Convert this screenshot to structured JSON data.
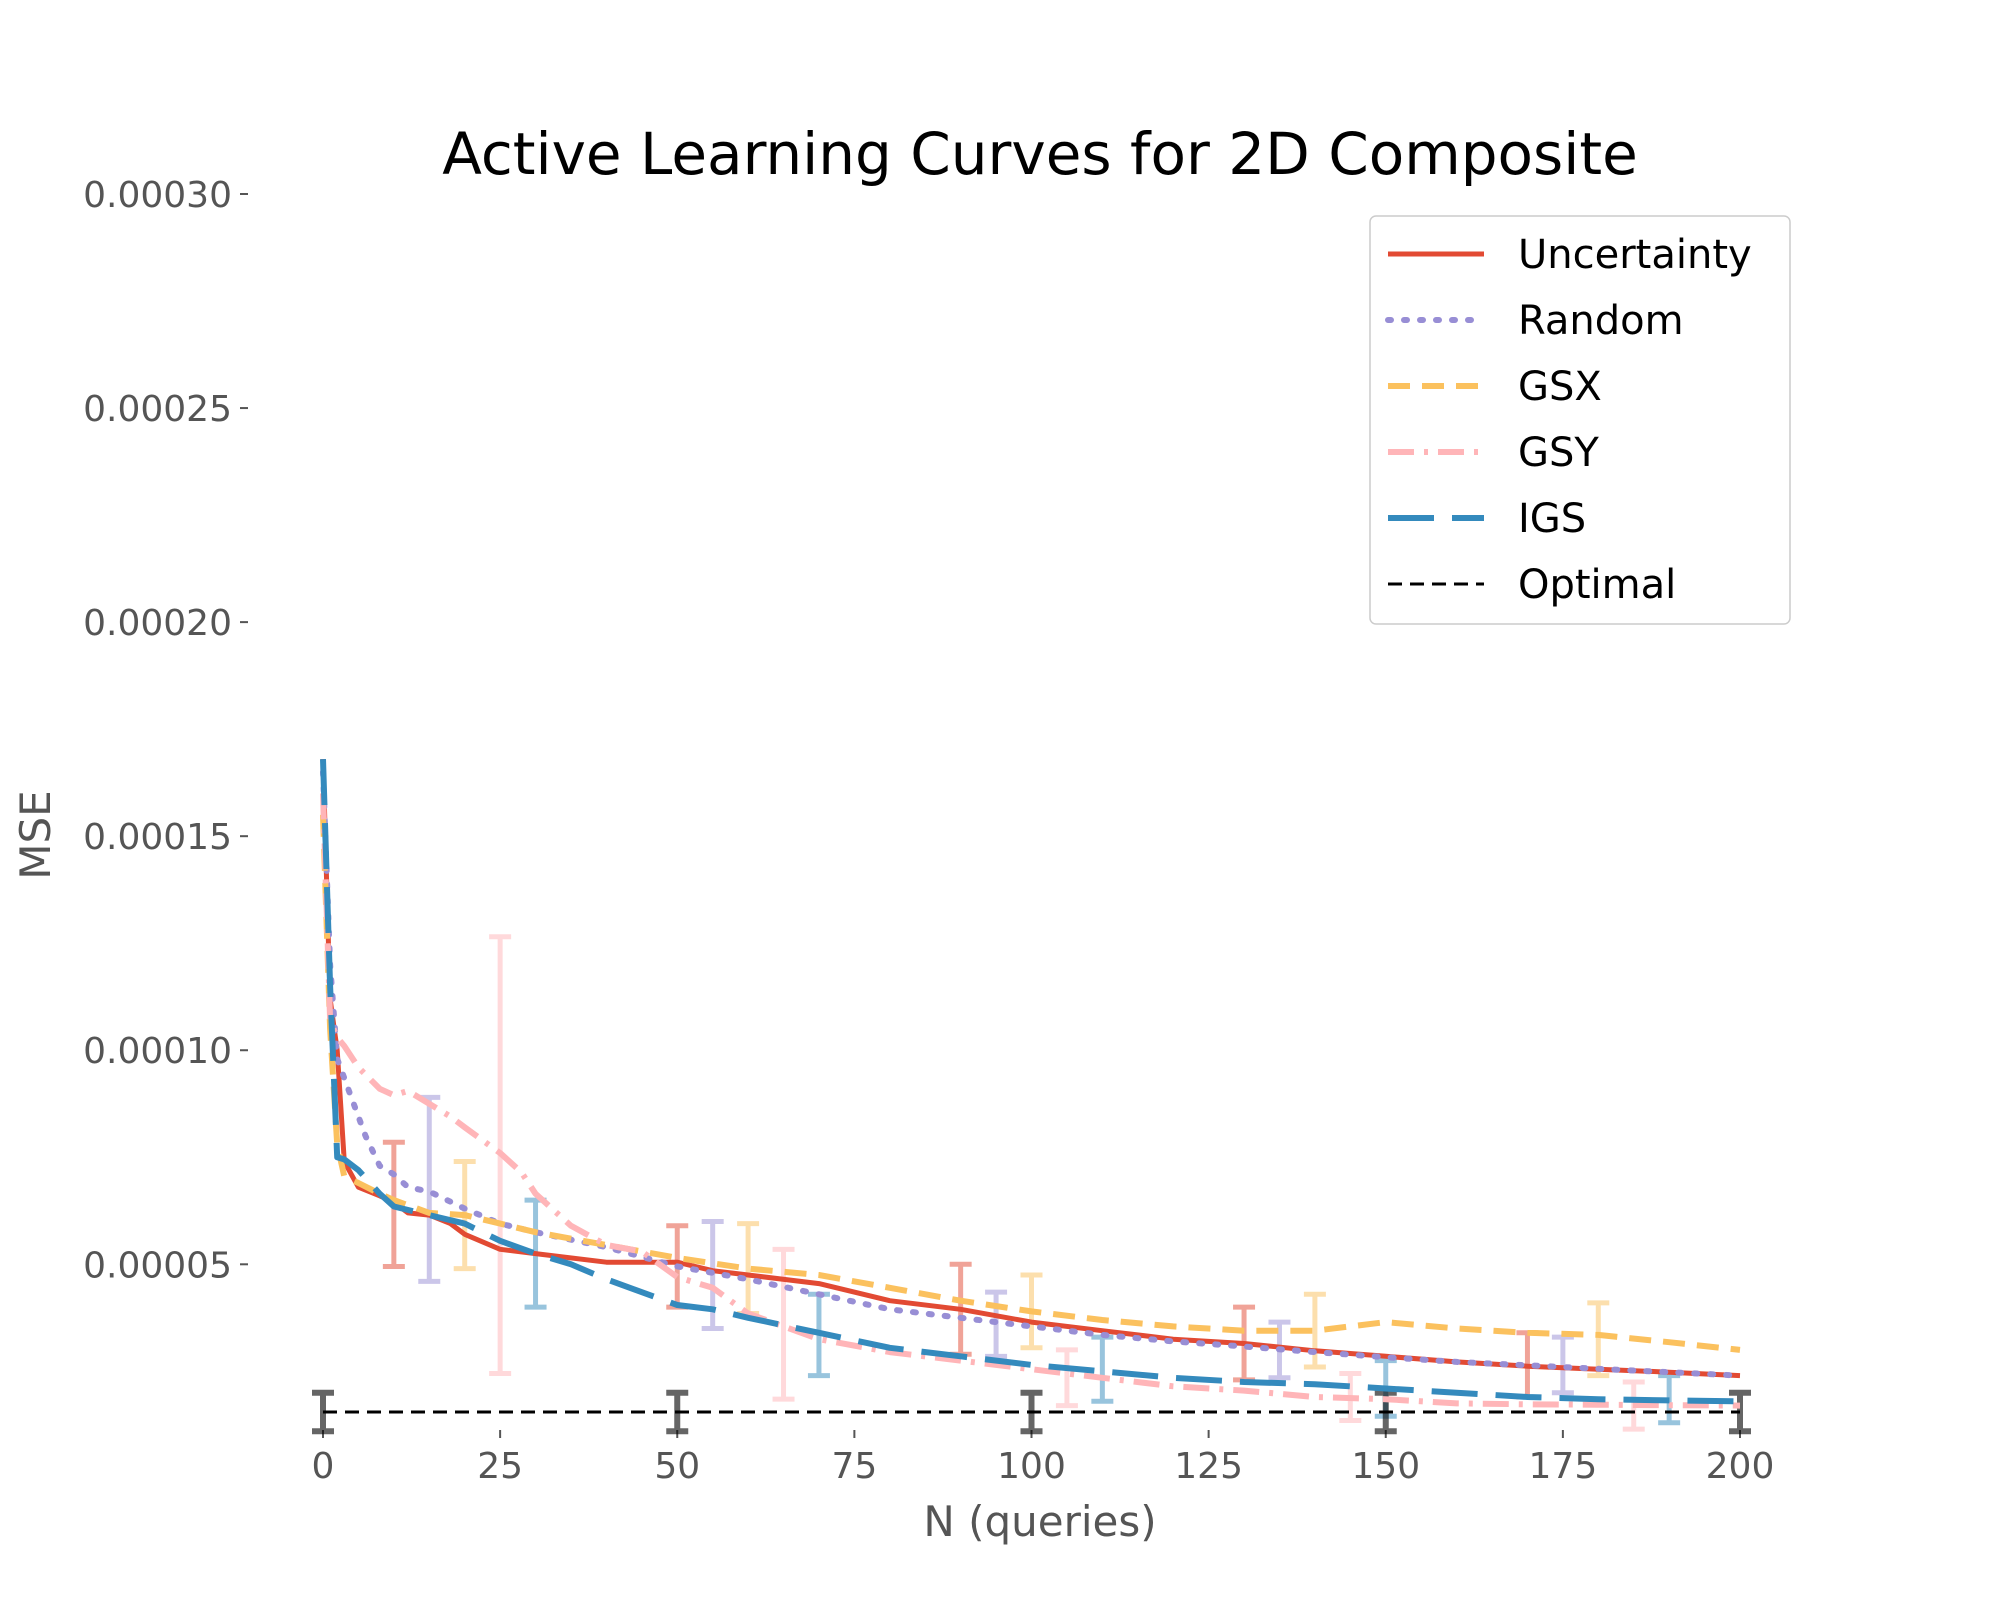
{
  "chart_data": {
    "type": "line",
    "title": "Active Learning Curves for 2D Composite",
    "xlabel": "N (queries)",
    "ylabel": "MSE",
    "xlim": [
      0,
      200
    ],
    "ylim": [
      1.2e-05,
      0.0003
    ],
    "xticks": [
      0,
      25,
      50,
      75,
      100,
      125,
      150,
      175,
      200
    ],
    "xtick_labels": [
      "0",
      "25",
      "50",
      "75",
      "100",
      "125",
      "150",
      "175",
      "200"
    ],
    "yticks": [
      5e-05,
      0.0001,
      0.00015,
      0.0002,
      0.00025,
      0.0003
    ],
    "ytick_labels": [
      "0.00005",
      "0.00010",
      "0.00015",
      "0.00020",
      "0.00025",
      "0.00030"
    ],
    "grid": false,
    "legend_position": "top-right",
    "series": [
      {
        "name": "Uncertainty",
        "color": "#E24A33",
        "dash": "solid",
        "x": [
          0,
          1,
          2,
          3,
          5,
          8,
          10,
          12,
          15,
          18,
          20,
          25,
          30,
          40,
          50,
          55,
          60,
          70,
          80,
          90,
          100,
          110,
          120,
          130,
          140,
          150,
          160,
          170,
          180,
          190,
          200
        ],
        "y": [
          0.000168,
          0.000112,
          0.0001,
          7.4e-05,
          6.8e-05,
          6.6e-05,
          6.45e-05,
          6.2e-05,
          6.15e-05,
          5.95e-05,
          5.7e-05,
          5.35e-05,
          5.25e-05,
          5.05e-05,
          5.05e-05,
          4.85e-05,
          4.75e-05,
          4.55e-05,
          4.15e-05,
          3.95e-05,
          3.65e-05,
          3.45e-05,
          3.25e-05,
          3.15e-05,
          2.98e-05,
          2.85e-05,
          2.72e-05,
          2.62e-05,
          2.55e-05,
          2.48e-05,
          2.4e-05
        ],
        "errorbars": [
          {
            "x": 10,
            "y": 6.4e-05,
            "err": 1.45e-05
          },
          {
            "x": 50,
            "y": 4.95e-05,
            "err": 9.5e-06
          },
          {
            "x": 90,
            "y": 3.95e-05,
            "err": 1.05e-05
          },
          {
            "x": 130,
            "y": 3.15e-05,
            "err": 8.5e-06
          },
          {
            "x": 170,
            "y": 2.65e-05,
            "err": 7.5e-06
          }
        ]
      },
      {
        "name": "Random",
        "color": "#988ED5",
        "dash": "dot",
        "x": [
          0,
          1,
          2,
          4,
          6,
          8,
          10,
          12,
          15,
          20,
          25,
          30,
          40,
          50,
          60,
          70,
          80,
          90,
          100,
          110,
          120,
          130,
          140,
          150,
          160,
          170,
          180,
          190,
          200
        ],
        "y": [
          0.000165,
          0.00012,
          9.8e-05,
          8.9e-05,
          8e-05,
          7.3e-05,
          7.1e-05,
          6.8e-05,
          6.7e-05,
          6.3e-05,
          5.95e-05,
          5.75e-05,
          5.4e-05,
          4.95e-05,
          4.65e-05,
          4.3e-05,
          3.95e-05,
          3.75e-05,
          3.55e-05,
          3.35e-05,
          3.2e-05,
          3.08e-05,
          2.95e-05,
          2.83e-05,
          2.72e-05,
          2.64e-05,
          2.56e-05,
          2.48e-05,
          2.4e-05
        ],
        "errorbars": [
          {
            "x": 15,
            "y": 6.75e-05,
            "err": 2.15e-05
          },
          {
            "x": 55,
            "y": 4.75e-05,
            "err": 1.25e-05
          },
          {
            "x": 95,
            "y": 3.6e-05,
            "err": 7.5e-06
          },
          {
            "x": 135,
            "y": 3e-05,
            "err": 6.5e-06
          },
          {
            "x": 175,
            "y": 2.65e-05,
            "err": 6.5e-06
          }
        ]
      },
      {
        "name": "GSX",
        "color": "#FBC15E",
        "dash": "dashed",
        "x": [
          0,
          1,
          2,
          3,
          5,
          8,
          10,
          15,
          20,
          25,
          30,
          40,
          50,
          60,
          70,
          80,
          90,
          100,
          110,
          120,
          130,
          140,
          150,
          160,
          170,
          180,
          190,
          200
        ],
        "y": [
          0.000155,
          0.000105,
          7.8e-05,
          7.05e-05,
          6.9e-05,
          6.65e-05,
          6.5e-05,
          6.2e-05,
          6.15e-05,
          5.95e-05,
          5.75e-05,
          5.45e-05,
          5.15e-05,
          4.9e-05,
          4.75e-05,
          4.45e-05,
          4.15e-05,
          3.9e-05,
          3.7e-05,
          3.55e-05,
          3.45e-05,
          3.45e-05,
          3.65e-05,
          3.5e-05,
          3.4e-05,
          3.35e-05,
          3.18e-05,
          3e-05
        ],
        "errorbars": [
          {
            "x": 20,
            "y": 6.15e-05,
            "err": 1.25e-05
          },
          {
            "x": 60,
            "y": 4.9e-05,
            "err": 1.05e-05
          },
          {
            "x": 100,
            "y": 3.9e-05,
            "err": 8.5e-06
          },
          {
            "x": 140,
            "y": 3.45e-05,
            "err": 8.5e-06
          },
          {
            "x": 180,
            "y": 3.25e-05,
            "err": 8.5e-06
          }
        ]
      },
      {
        "name": "GSY",
        "color": "#FFB5B8",
        "dash": "dashdot",
        "x": [
          0,
          1,
          2,
          3,
          5,
          8,
          10,
          12,
          15,
          18,
          20,
          25,
          28,
          30,
          35,
          40,
          45,
          50,
          55,
          60,
          65,
          70,
          80,
          90,
          100,
          110,
          120,
          130,
          140,
          150,
          160,
          170,
          180,
          190,
          200
        ],
        "y": [
          0.00016,
          0.000107,
          0.000103,
          0.000101,
          9.6e-05,
          9.1e-05,
          8.95e-05,
          9.05e-05,
          8.75e-05,
          8.45e-05,
          8.2e-05,
          7.6e-05,
          7.15e-05,
          6.65e-05,
          5.9e-05,
          5.45e-05,
          5.3e-05,
          4.7e-05,
          4.45e-05,
          3.85e-05,
          3.55e-05,
          3.25e-05,
          2.95e-05,
          2.75e-05,
          2.55e-05,
          2.35e-05,
          2.15e-05,
          2.05e-05,
          1.9e-05,
          1.85e-05,
          1.75e-05,
          1.73e-05,
          1.72e-05,
          1.71e-05,
          1.7e-05
        ],
        "errorbars": [
          {
            "x": 25,
            "y": 7.55e-05,
            "err": 5.1e-05
          },
          {
            "x": 65,
            "y": 3.6e-05,
            "err": 1.75e-05
          },
          {
            "x": 105,
            "y": 2.35e-05,
            "err": 6.5e-06
          },
          {
            "x": 145,
            "y": 1.9e-05,
            "err": 5.5e-06
          },
          {
            "x": 185,
            "y": 1.7e-05,
            "err": 5.5e-06
          }
        ]
      },
      {
        "name": "IGS",
        "color": "#348ABD",
        "dash": "longdash",
        "x": [
          0,
          1,
          2,
          3,
          5,
          8,
          10,
          15,
          20,
          25,
          30,
          35,
          40,
          50,
          55,
          60,
          70,
          80,
          90,
          100,
          110,
          120,
          130,
          140,
          150,
          160,
          170,
          180,
          190,
          200
        ],
        "y": [
          0.000168,
          0.000115,
          7.5e-05,
          7.45e-05,
          7.2e-05,
          6.65e-05,
          6.35e-05,
          6.15e-05,
          5.95e-05,
          5.55e-05,
          5.25e-05,
          5e-05,
          4.65e-05,
          4.05e-05,
          3.95e-05,
          3.75e-05,
          3.4e-05,
          3.05e-05,
          2.85e-05,
          2.65e-05,
          2.5e-05,
          2.35e-05,
          2.25e-05,
          2.2e-05,
          2.1e-05,
          2e-05,
          1.9e-05,
          1.85e-05,
          1.82e-05,
          1.8e-05
        ],
        "errorbars": [
          {
            "x": 30,
            "y": 5.25e-05,
            "err": 1.25e-05
          },
          {
            "x": 70,
            "y": 3.35e-05,
            "err": 9.5e-06
          },
          {
            "x": 110,
            "y": 2.55e-05,
            "err": 7.5e-06
          },
          {
            "x": 150,
            "y": 2.1e-05,
            "err": 6.5e-06
          },
          {
            "x": 190,
            "y": 1.85e-05,
            "err": 5.5e-06
          }
        ]
      },
      {
        "name": "Optimal",
        "color": "#000000",
        "dash": "shortdash",
        "x": [
          0,
          200
        ],
        "y": [
          1.55e-05,
          1.55e-05
        ],
        "errorbars": [
          {
            "x": 0,
            "y": 1.55e-05,
            "err": 4.5e-06
          },
          {
            "x": 50,
            "y": 1.55e-05,
            "err": 4.5e-06
          },
          {
            "x": 100,
            "y": 1.55e-05,
            "err": 4.5e-06
          },
          {
            "x": 150,
            "y": 1.55e-05,
            "err": 4.5e-06
          },
          {
            "x": 200,
            "y": 1.55e-05,
            "err": 4.5e-06
          }
        ]
      }
    ]
  }
}
